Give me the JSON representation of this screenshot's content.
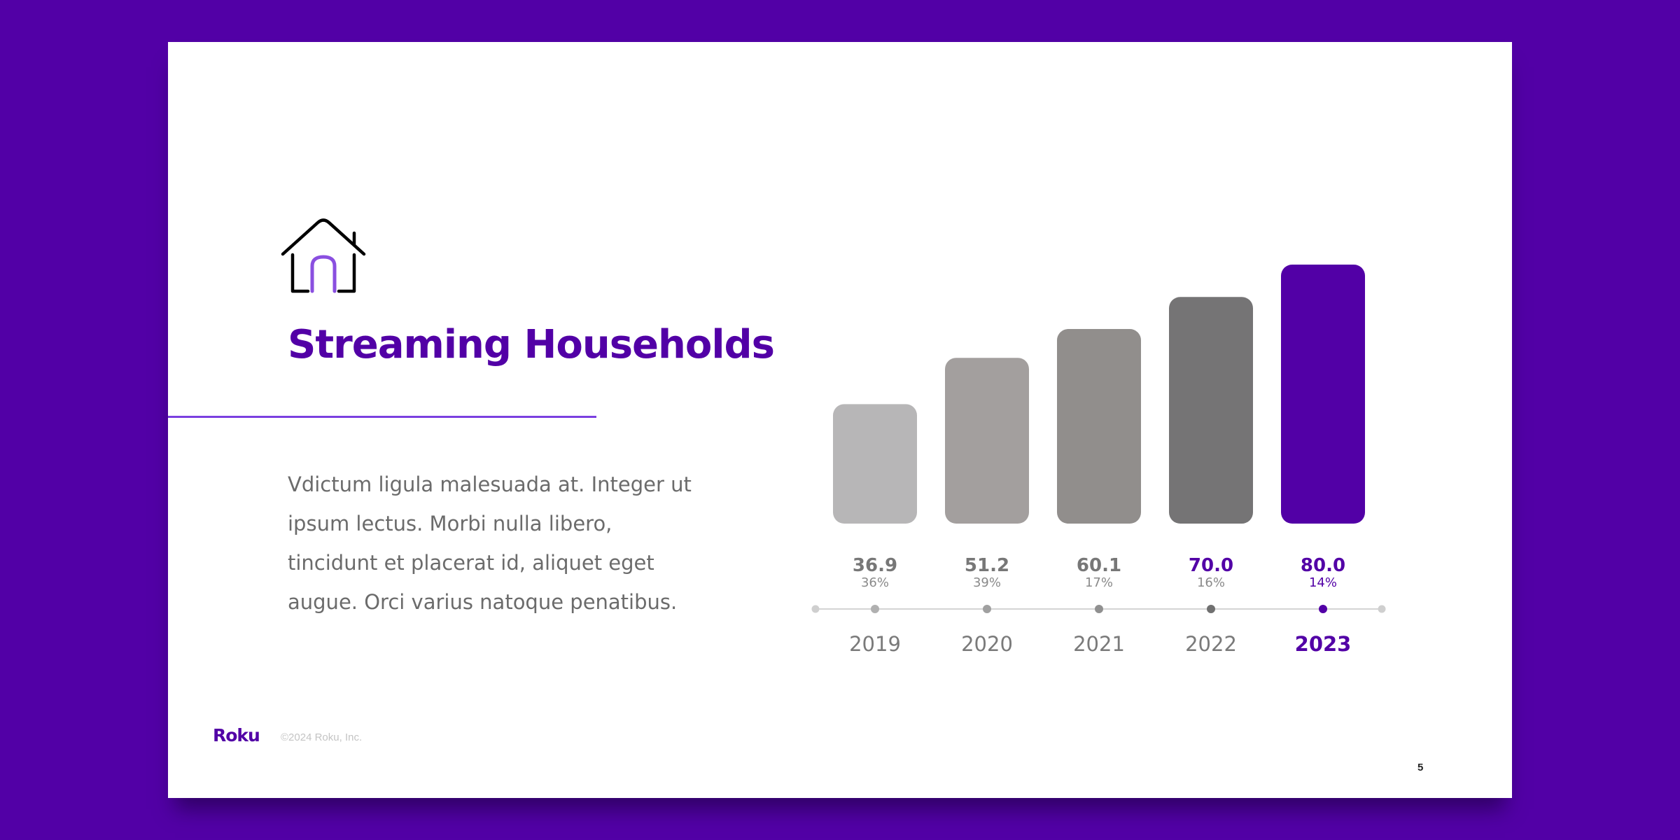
{
  "slide": {
    "title": "Streaming Households",
    "body": "Vdictum ligula malesuada at. Integer ut ipsum lectus. Morbi nulla libero, tincidunt et placerat id, aliquet eget augue. Orci varius natoque penatibus.",
    "icon": "house-icon",
    "footer_logo": "Roku",
    "footer_copyright": "©2024 Roku, Inc.",
    "page_number": "5"
  },
  "colors": {
    "background": "#5200a6",
    "accent": "#5200a6",
    "divider": "#7a3fe0",
    "icon_accent": "#8a4fe0"
  },
  "chart_data": {
    "type": "bar",
    "title": "",
    "xlabel": "",
    "ylabel": "",
    "ylim": [
      0,
      80
    ],
    "grid": false,
    "categories": [
      "2019",
      "2020",
      "2021",
      "2022",
      "2023"
    ],
    "values": [
      36.9,
      51.2,
      60.1,
      70.0,
      80.0
    ],
    "value_labels": [
      "36.9",
      "51.2",
      "60.1",
      "70.0",
      "80.0"
    ],
    "growth_labels": [
      "36%",
      "39%",
      "17%",
      "16%",
      "14%"
    ],
    "bar_colors": [
      "#b7b6b7",
      "#a39f9e",
      "#918e8c",
      "#757475",
      "#5200a6"
    ],
    "label_colors": [
      "#777777",
      "#777777",
      "#777777",
      "#5200a6",
      "#5200a6"
    ],
    "dot_colors": [
      "#b0b0b0",
      "#a0a0a0",
      "#909090",
      "#707070",
      "#5200a6"
    ],
    "highlight_index": 4
  }
}
